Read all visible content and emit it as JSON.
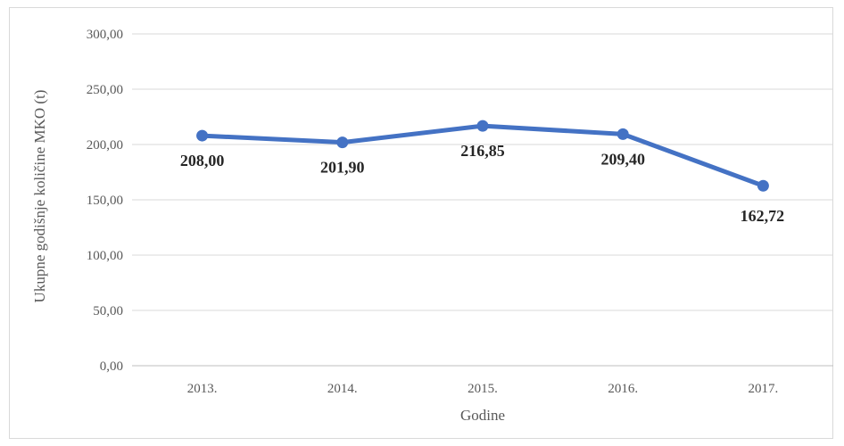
{
  "chart_data": {
    "type": "line",
    "categories": [
      "2013.",
      "2014.",
      "2015.",
      "2016.",
      "2017."
    ],
    "series": [
      {
        "values": [
          208.0,
          201.9,
          216.85,
          209.4,
          162.72
        ],
        "data_labels": [
          "208,00",
          "201,90",
          "216,85",
          "209,40",
          "162,72"
        ],
        "color": "#4472c4"
      }
    ],
    "y_ticks": [
      "0,00",
      "50,00",
      "100,00",
      "150,00",
      "200,00",
      "250,00",
      "300,00"
    ],
    "ylim": [
      0,
      300
    ],
    "xlabel": "Godine",
    "ylabel": "Ukupne godišnje količine MKO (t)",
    "grid": true,
    "gridline_color": "#d9d9d9",
    "axis_color": "#bfbfbf"
  }
}
